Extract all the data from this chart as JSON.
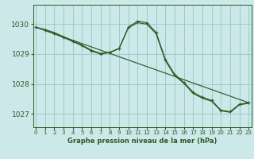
{
  "xlabel": "Graphe pression niveau de la mer (hPa)",
  "background_color": "#cce8e8",
  "grid_color": "#99cccc",
  "line_color": "#2d5a27",
  "ylim": [
    1026.55,
    1030.65
  ],
  "xlim": [
    -0.3,
    23.3
  ],
  "yticks": [
    1027,
    1028,
    1029,
    1030
  ],
  "xticks": [
    0,
    1,
    2,
    3,
    4,
    5,
    6,
    7,
    8,
    9,
    10,
    11,
    12,
    13,
    14,
    15,
    16,
    17,
    18,
    19,
    20,
    21,
    22,
    23
  ],
  "line1_x": [
    0,
    1,
    2,
    3,
    4,
    5,
    6,
    7,
    8,
    9,
    10,
    11,
    12,
    13,
    14,
    15,
    16,
    17,
    18,
    19,
    20,
    21,
    22,
    23
  ],
  "line1_y": [
    1029.9,
    1029.8,
    1029.68,
    1029.55,
    1029.42,
    1029.28,
    1029.1,
    1029.0,
    1029.05,
    1029.18,
    1029.9,
    1030.1,
    1030.05,
    1029.72,
    1028.82,
    1028.32,
    1028.05,
    1027.72,
    1027.55,
    1027.45,
    1027.12,
    1027.07,
    1027.32,
    1027.37
  ],
  "line2_x": [
    0,
    1,
    2,
    3,
    4,
    5,
    6,
    7,
    8,
    9,
    10,
    11,
    12,
    13,
    14,
    15,
    16,
    17,
    18,
    19,
    20,
    21,
    22,
    23
  ],
  "line2_y": [
    1029.9,
    1029.82,
    1029.72,
    1029.58,
    1029.44,
    1029.3,
    1029.13,
    1029.02,
    1029.06,
    1029.19,
    1029.88,
    1030.05,
    1030.0,
    1029.68,
    1028.78,
    1028.28,
    1028.02,
    1027.68,
    1027.52,
    1027.42,
    1027.1,
    1027.05,
    1027.3,
    1027.35
  ],
  "straight_line_x": [
    0,
    23
  ],
  "straight_line_y": [
    1029.9,
    1027.37
  ]
}
